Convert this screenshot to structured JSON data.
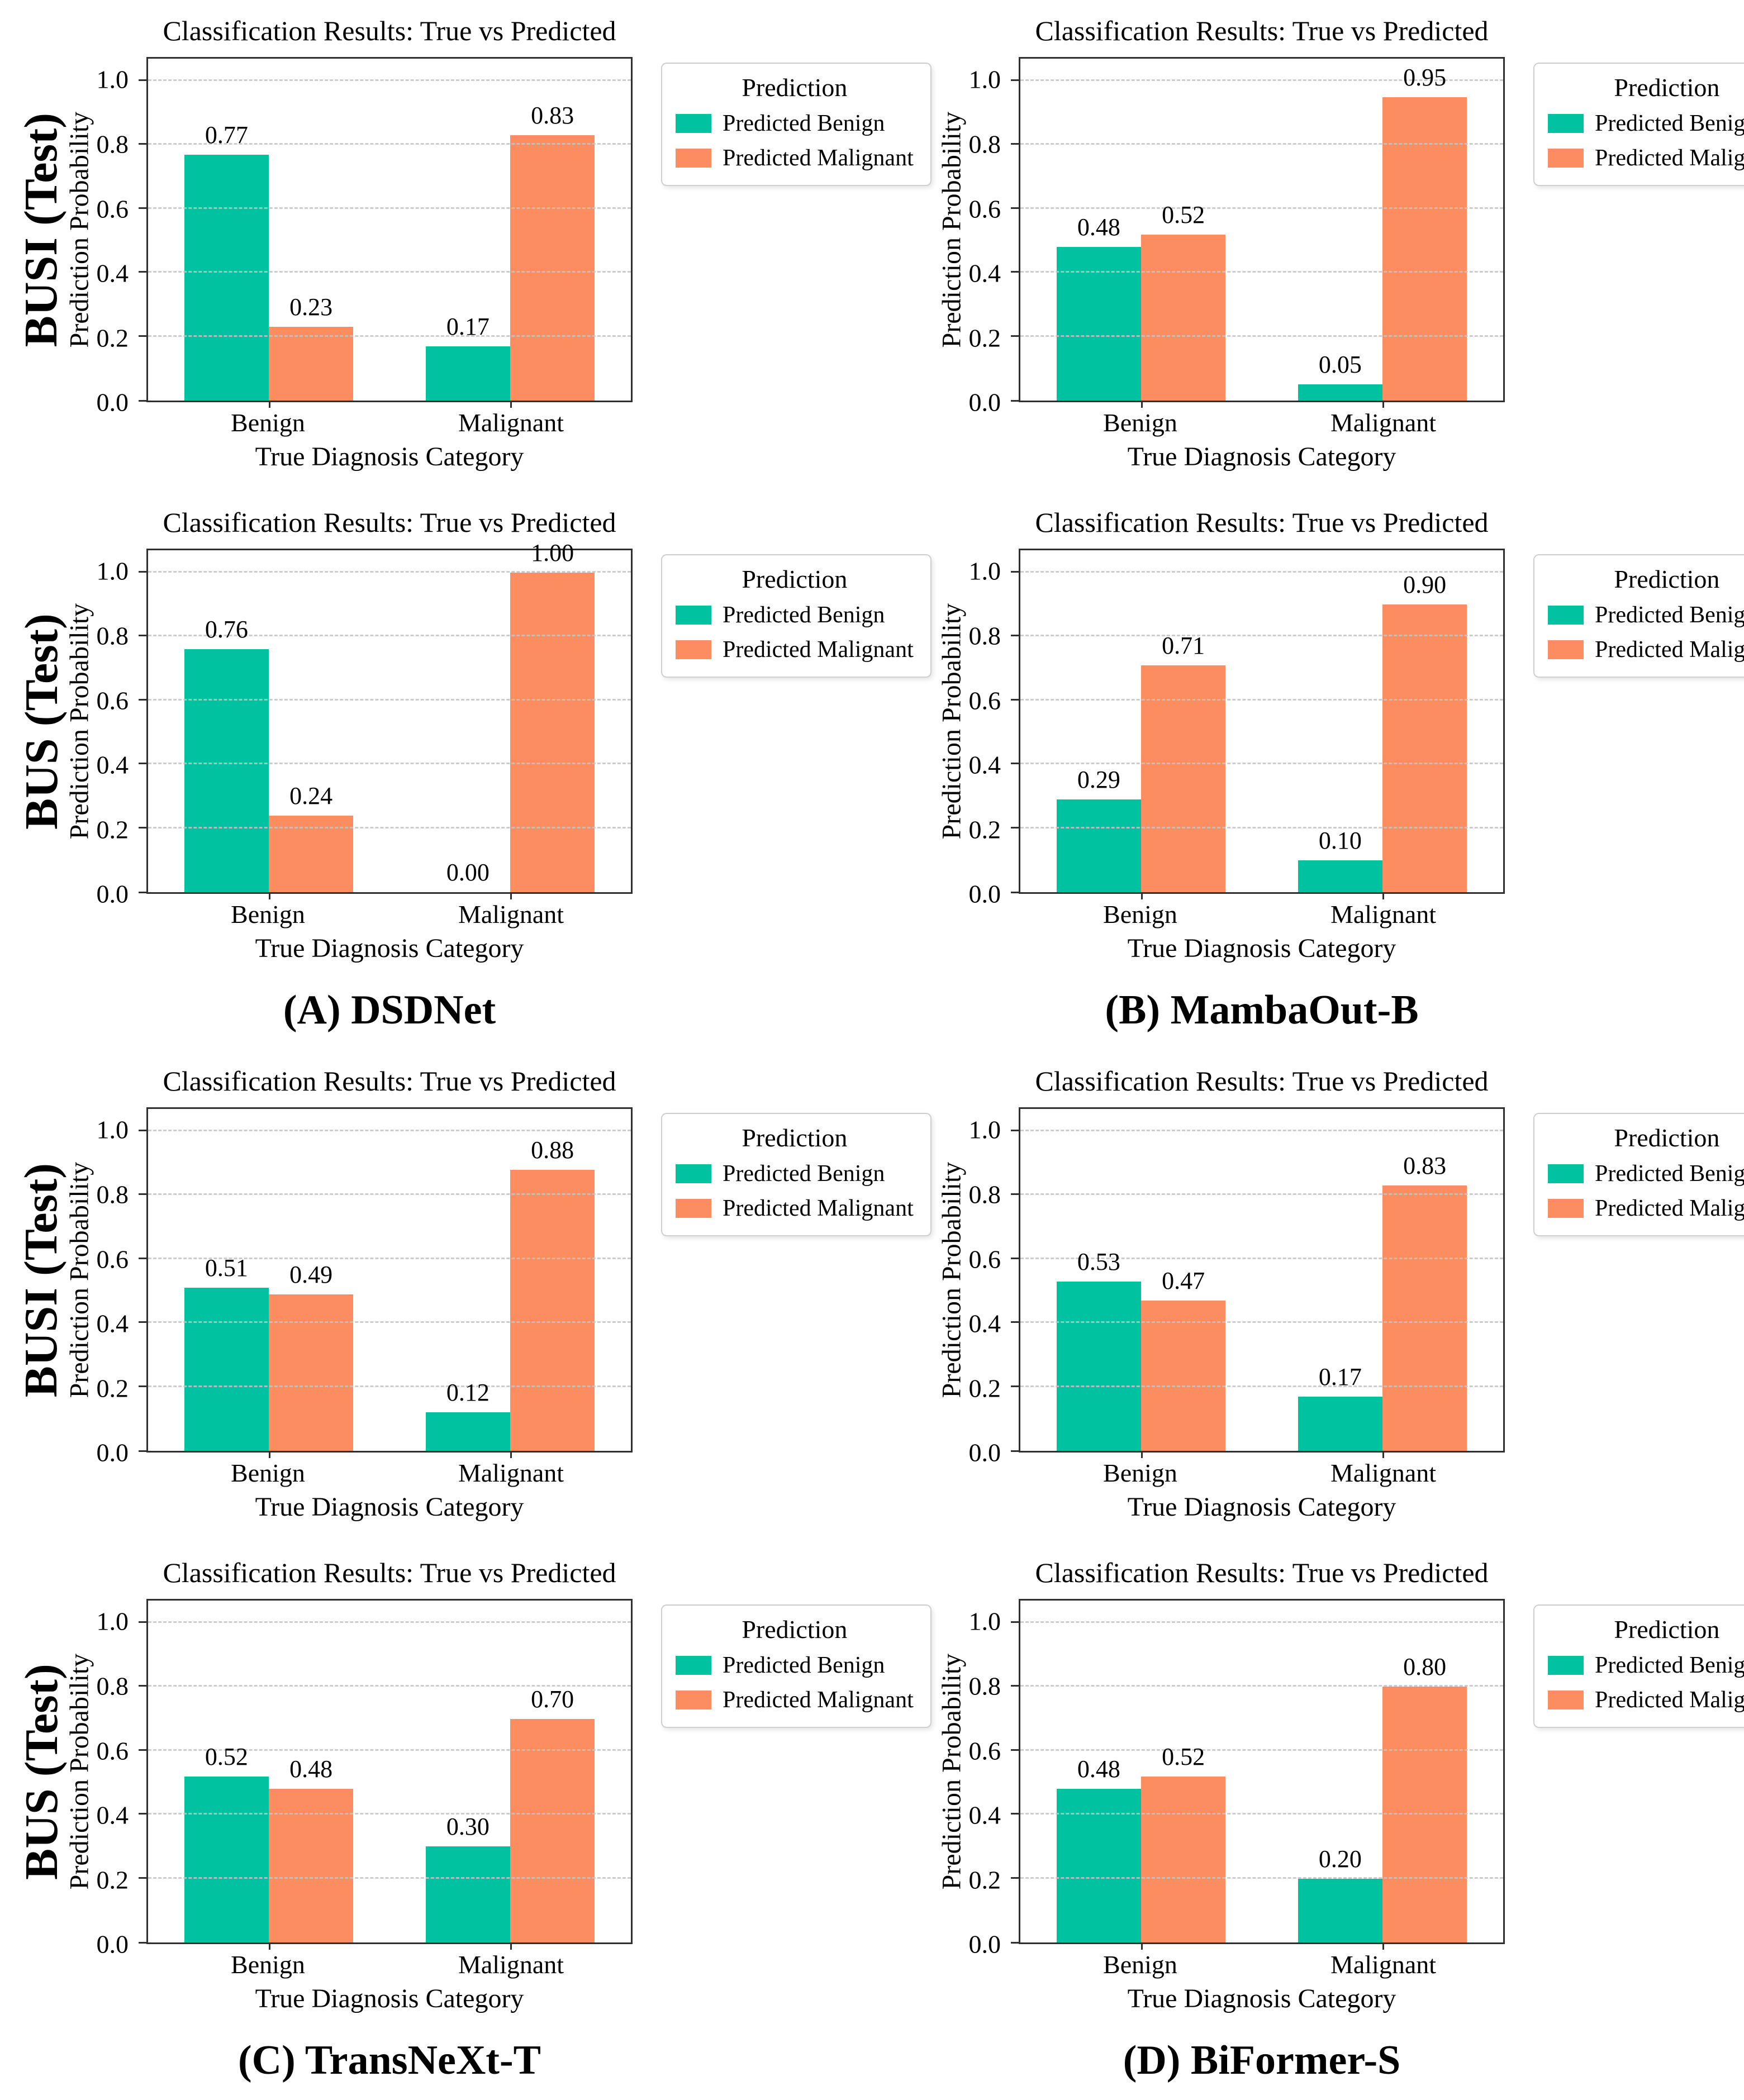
{
  "colors": {
    "benign": "#00C2A1",
    "malignant": "#FB8D61",
    "gridline": "#c3c3c3",
    "spine": "#2f2f2f",
    "background": "#ffffff"
  },
  "axis": {
    "ylabel": "Prediction Probability",
    "xlabel": "True Diagnosis Category",
    "yticks": [
      "0.0",
      "0.2",
      "0.4",
      "0.6",
      "0.8",
      "1.0"
    ],
    "ylim": [
      0,
      1.07
    ],
    "ymax": 1.07,
    "grid": "dashed horizontal at 0.2 steps"
  },
  "legend": {
    "title": "Prediction",
    "position": "outside right",
    "items": [
      {
        "label": "Predicted Benign",
        "color": "#00C2A1"
      },
      {
        "label": "Predicted Malignant",
        "color": "#FB8D61"
      }
    ]
  },
  "captions": [
    {
      "label": "(A) DSDNet"
    },
    {
      "label": "(B) MambaOut-B"
    },
    {
      "label": "(C) TransNeXt-T"
    },
    {
      "label": "(D) BiFormer-S"
    }
  ],
  "chart_data": [
    {
      "type": "bar",
      "model": "DSDNet",
      "dataset": "BUSI (Test)",
      "row_label": "BUSI (Test)",
      "title": "Classification Results: True vs Predicted",
      "categories": [
        "Benign",
        "Malignant"
      ],
      "series": [
        {
          "name": "Predicted Benign",
          "values": [
            0.77,
            0.17
          ]
        },
        {
          "name": "Predicted Malignant",
          "values": [
            0.23,
            0.83
          ]
        }
      ],
      "value_labels": [
        "0.77",
        "0.23",
        "0.17",
        "0.83"
      ]
    },
    {
      "type": "bar",
      "model": "MambaOut-B",
      "dataset": "BUSI (Test)",
      "row_label": "",
      "title": "Classification Results: True vs Predicted",
      "categories": [
        "Benign",
        "Malignant"
      ],
      "series": [
        {
          "name": "Predicted Benign",
          "values": [
            0.48,
            0.05
          ]
        },
        {
          "name": "Predicted Malignant",
          "values": [
            0.52,
            0.95
          ]
        }
      ],
      "value_labels": [
        "0.48",
        "0.52",
        "0.05",
        "0.95"
      ]
    },
    {
      "type": "bar",
      "model": "DSDNet",
      "dataset": "BUS (Test)",
      "row_label": "BUS (Test)",
      "title": "Classification Results: True vs Predicted",
      "categories": [
        "Benign",
        "Malignant"
      ],
      "series": [
        {
          "name": "Predicted Benign",
          "values": [
            0.76,
            0.0
          ]
        },
        {
          "name": "Predicted Malignant",
          "values": [
            0.24,
            1.0
          ]
        }
      ],
      "value_labels": [
        "0.76",
        "0.24",
        "0.00",
        "1.00"
      ]
    },
    {
      "type": "bar",
      "model": "MambaOut-B",
      "dataset": "BUS (Test)",
      "row_label": "",
      "title": "Classification Results: True vs Predicted",
      "categories": [
        "Benign",
        "Malignant"
      ],
      "series": [
        {
          "name": "Predicted Benign",
          "values": [
            0.29,
            0.1
          ]
        },
        {
          "name": "Predicted Malignant",
          "values": [
            0.71,
            0.9
          ]
        }
      ],
      "value_labels": [
        "0.29",
        "0.71",
        "0.10",
        "0.90"
      ]
    },
    {
      "type": "bar",
      "model": "TransNeXt-T",
      "dataset": "BUSI (Test)",
      "row_label": "BUSI (Test)",
      "title": "Classification Results: True vs Predicted",
      "categories": [
        "Benign",
        "Malignant"
      ],
      "series": [
        {
          "name": "Predicted Benign",
          "values": [
            0.51,
            0.12
          ]
        },
        {
          "name": "Predicted Malignant",
          "values": [
            0.49,
            0.88
          ]
        }
      ],
      "value_labels": [
        "0.51",
        "0.49",
        "0.12",
        "0.88"
      ]
    },
    {
      "type": "bar",
      "model": "BiFormer-S",
      "dataset": "BUSI (Test)",
      "row_label": "",
      "title": "Classification Results: True vs Predicted",
      "categories": [
        "Benign",
        "Malignant"
      ],
      "series": [
        {
          "name": "Predicted Benign",
          "values": [
            0.53,
            0.17
          ]
        },
        {
          "name": "Predicted Malignant",
          "values": [
            0.47,
            0.83
          ]
        }
      ],
      "value_labels": [
        "0.53",
        "0.47",
        "0.17",
        "0.83"
      ]
    },
    {
      "type": "bar",
      "model": "TransNeXt-T",
      "dataset": "BUS (Test)",
      "row_label": "BUS (Test)",
      "title": "Classification Results: True vs Predicted",
      "categories": [
        "Benign",
        "Malignant"
      ],
      "series": [
        {
          "name": "Predicted Benign",
          "values": [
            0.52,
            0.3
          ]
        },
        {
          "name": "Predicted Malignant",
          "values": [
            0.48,
            0.7
          ]
        }
      ],
      "value_labels": [
        "0.52",
        "0.48",
        "0.30",
        "0.70"
      ]
    },
    {
      "type": "bar",
      "model": "BiFormer-S",
      "dataset": "BUS (Test)",
      "row_label": "",
      "title": "Classification Results: True vs Predicted",
      "categories": [
        "Benign",
        "Malignant"
      ],
      "series": [
        {
          "name": "Predicted Benign",
          "values": [
            0.48,
            0.2
          ]
        },
        {
          "name": "Predicted Malignant",
          "values": [
            0.52,
            0.8
          ]
        }
      ],
      "value_labels": [
        "0.48",
        "0.52",
        "0.20",
        "0.80"
      ]
    }
  ]
}
